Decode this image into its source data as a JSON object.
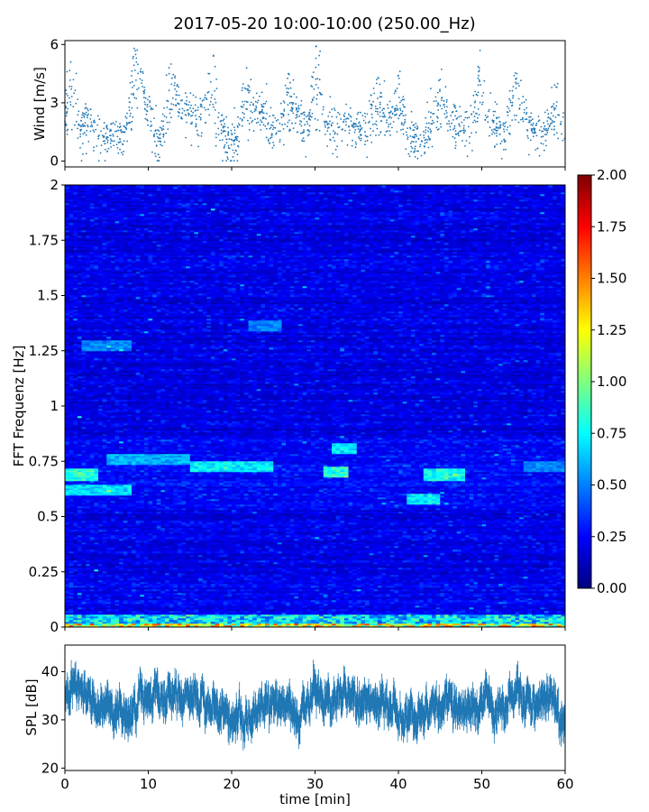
{
  "title": "2017-05-20 10:00-10:00 (250.00_Hz)",
  "colors": {
    "scatter": "#1f77b4",
    "spl": "#1f77b4",
    "colormap": "jet"
  },
  "chart_data": [
    {
      "type": "scatter",
      "name": "wind",
      "ylabel": "Wind [m/s]",
      "xlim": [
        0,
        60
      ],
      "ylim": [
        -0.3,
        6.2
      ],
      "yticks": [
        0,
        3,
        6
      ],
      "ytick_labels": [
        "0",
        "3",
        "6"
      ],
      "grid": false,
      "envelope_x": [
        0,
        1,
        2,
        3,
        4,
        5,
        6,
        7,
        8,
        9,
        10,
        11,
        12,
        13,
        14,
        15,
        16,
        17,
        18,
        19,
        20,
        21,
        22,
        23,
        24,
        25,
        26,
        27,
        28,
        29,
        30,
        31,
        32,
        33,
        34,
        35,
        36,
        37,
        38,
        39,
        40,
        41,
        42,
        43,
        44,
        45,
        46,
        47,
        48,
        49,
        50,
        51,
        52,
        53,
        54,
        55,
        56,
        57,
        58,
        59,
        60
      ],
      "envelope_y": [
        1.8,
        2.3,
        1.6,
        2.2,
        1.4,
        1.0,
        1.2,
        1.0,
        1.8,
        4.0,
        2.5,
        1.0,
        1.2,
        3.2,
        2.8,
        2.5,
        2.0,
        2.3,
        1.4,
        1.2,
        0.7,
        1.4,
        1.8,
        2.4,
        2.3,
        1.4,
        1.5,
        1.7,
        2.2,
        1.3,
        2.0,
        2.1,
        1.7,
        1.8,
        2.0,
        1.6,
        1.7,
        1.9,
        2.2,
        2.0,
        1.9,
        1.7,
        1.2,
        1.1,
        1.7,
        2.1,
        1.9,
        1.8,
        1.6,
        1.9,
        2.4,
        2.0,
        1.5,
        1.7,
        2.6,
        1.9,
        1.6,
        1.5,
        1.8,
        2.0,
        1.0
      ],
      "peaks": [
        [
          0.7,
          5.1
        ],
        [
          8.3,
          5.8
        ],
        [
          12.5,
          4.8
        ],
        [
          17.8,
          5.4
        ],
        [
          21.8,
          4.8
        ],
        [
          26.8,
          4.5
        ],
        [
          30.1,
          5.9
        ],
        [
          37.4,
          4.2
        ],
        [
          40.0,
          4.4
        ],
        [
          45.0,
          4.2
        ],
        [
          49.7,
          4.8
        ],
        [
          54.2,
          4.5
        ],
        [
          59.0,
          3.8
        ]
      ]
    },
    {
      "type": "heatmap",
      "name": "fft-spectrogram",
      "ylabel": "FFT Frequenz [Hz]",
      "xlim": [
        0,
        60
      ],
      "ylim": [
        0,
        2
      ],
      "yticks": [
        0,
        0.25,
        0.5,
        0.75,
        1,
        1.25,
        1.5,
        1.75,
        2
      ],
      "ytick_labels": [
        "0",
        "0.25",
        "0.5",
        "0.75",
        "1",
        "1.25",
        "1.5",
        "1.75",
        "2"
      ],
      "colorbar": {
        "range": [
          0,
          2
        ],
        "ticks": [
          "0.00",
          "0.25",
          "0.50",
          "0.75",
          "1.00",
          "1.25",
          "1.50",
          "1.75",
          "2.00"
        ]
      },
      "features": [
        {
          "x": [
            0,
            4
          ],
          "y": 0.69,
          "value": 0.95
        },
        {
          "x": [
            0,
            8
          ],
          "y": 0.62,
          "value": 0.8
        },
        {
          "x": [
            15,
            25
          ],
          "y": 0.73,
          "value": 0.85
        },
        {
          "x": [
            31,
            34
          ],
          "y": 0.7,
          "value": 0.95
        },
        {
          "x": [
            32,
            35
          ],
          "y": 0.81,
          "value": 0.85
        },
        {
          "x": [
            41,
            45
          ],
          "y": 0.58,
          "value": 0.85
        },
        {
          "x": [
            43,
            48
          ],
          "y": 0.69,
          "value": 0.9
        },
        {
          "x": [
            2,
            8
          ],
          "y": 1.27,
          "value": 0.6
        },
        {
          "x": [
            22,
            26
          ],
          "y": 1.36,
          "value": 0.6
        },
        {
          "x": [
            5,
            15
          ],
          "y": 0.76,
          "value": 0.7
        },
        {
          "x": [
            55,
            60
          ],
          "y": 0.73,
          "value": 0.6
        }
      ],
      "low_band": {
        "y": [
          0,
          0.06
        ],
        "value": 1.4
      }
    },
    {
      "type": "area",
      "name": "spl",
      "ylabel": "SPL [dB]",
      "xlabel": "time [min]",
      "xlim": [
        0,
        60
      ],
      "ylim": [
        19.5,
        45.5
      ],
      "xticks": [
        0,
        10,
        20,
        30,
        40,
        50,
        60
      ],
      "xtick_labels": [
        "0",
        "10",
        "20",
        "30",
        "40",
        "50",
        "60"
      ],
      "yticks": [
        20,
        30,
        40
      ],
      "ytick_labels": [
        "20",
        "30",
        "40"
      ],
      "grid": false,
      "mean_x": [
        0,
        2,
        4,
        6,
        8,
        10,
        12,
        14,
        16,
        18,
        20,
        22,
        24,
        26,
        28,
        30,
        32,
        34,
        36,
        38,
        40,
        42,
        44,
        46,
        48,
        50,
        52,
        54,
        56,
        58,
        60
      ],
      "mean_y": [
        35,
        36,
        33,
        30,
        33,
        36,
        34,
        35,
        34,
        33,
        29,
        31,
        34,
        33,
        31,
        36,
        34,
        36,
        33,
        34,
        30,
        31,
        32,
        33,
        32,
        34,
        32,
        36,
        33,
        34,
        29
      ]
    }
  ]
}
